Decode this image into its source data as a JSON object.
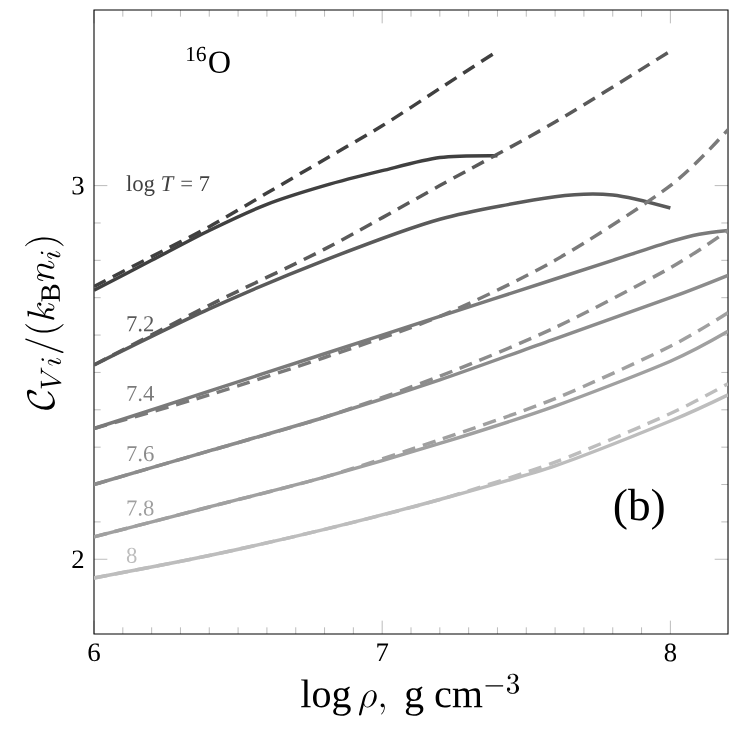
{
  "chart_data": {
    "type": "line",
    "xlabel": "\\log\\rho,\\ \\mathrm{g\\ cm}^{-3}",
    "ylabel": "\\mathcal{C}_{Vi}/(k_\\mathrm{B}n_i)",
    "xlim": [
      6,
      8.2
    ],
    "ylim": [
      1.8,
      3.47
    ],
    "xticks": [
      6,
      7,
      8
    ],
    "yticks": [
      2,
      3
    ],
    "marker": "none",
    "annotations": [
      "$^{16}$O",
      "(b)"
    ],
    "series": [
      {
        "name": "log *T* = 7",
        "color": "#404040",
        "line_style": "solid",
        "x": [
          6,
          6.2,
          6.4,
          6.6,
          6.8,
          7.0,
          7.2,
          7.4
        ],
        "values": [
          2.72,
          2.8,
          2.88,
          2.95,
          3.0,
          3.04,
          3.075,
          3.08
        ]
      },
      {
        "color": "#404040",
        "line_style": "dashed",
        "x": [
          6,
          6.2,
          6.4,
          6.6,
          6.8,
          7.0,
          7.2,
          7.4
        ],
        "values": [
          2.73,
          2.81,
          2.89,
          2.98,
          3.07,
          3.16,
          3.26,
          3.36
        ]
      },
      {
        "name": "7.2",
        "color": "#5a5a5a",
        "line_style": "solid",
        "x": [
          6,
          6.4,
          6.8,
          7.2,
          7.6,
          7.8,
          8.0
        ],
        "values": [
          2.52,
          2.67,
          2.8,
          2.91,
          2.97,
          2.975,
          2.94
        ]
      },
      {
        "color": "#5a5a5a",
        "line_style": "dashed",
        "x": [
          6,
          6.4,
          6.8,
          7.2,
          7.6,
          8.0
        ],
        "values": [
          2.52,
          2.68,
          2.83,
          3.0,
          3.17,
          3.36
        ]
      },
      {
        "name": "7.4",
        "color": "#7a7a7a",
        "line_style": "solid",
        "x": [
          6,
          6.4,
          6.8,
          7.2,
          7.6,
          7.8,
          8.0,
          8.1,
          8.2
        ],
        "values": [
          2.35,
          2.45,
          2.55,
          2.65,
          2.75,
          2.8,
          2.85,
          2.87,
          2.88
        ]
      },
      {
        "color": "#7a7a7a",
        "line_style": "dashed",
        "x": [
          6,
          6.4,
          6.8,
          7.2,
          7.6,
          8.0,
          8.2
        ],
        "values": [
          2.35,
          2.44,
          2.54,
          2.65,
          2.8,
          3.0,
          3.15
        ]
      },
      {
        "name": "7.6",
        "color": "#8c8c8c",
        "line_style": "solid",
        "x": [
          6,
          6.4,
          6.8,
          7.2,
          7.6,
          8.0,
          8.2
        ],
        "values": [
          2.2,
          2.29,
          2.38,
          2.48,
          2.59,
          2.7,
          2.76
        ]
      },
      {
        "color": "#8c8c8c",
        "line_style": "dashed",
        "x": [
          6,
          6.4,
          6.8,
          7.2,
          7.6,
          8.0,
          8.2
        ],
        "values": [
          2.2,
          2.29,
          2.38,
          2.49,
          2.62,
          2.78,
          2.88
        ]
      },
      {
        "name": "7.8",
        "color": "#a0a0a0",
        "line_style": "solid",
        "x": [
          6,
          6.4,
          6.8,
          7.2,
          7.6,
          8.0,
          8.2
        ],
        "values": [
          2.06,
          2.14,
          2.22,
          2.31,
          2.41,
          2.53,
          2.61
        ]
      },
      {
        "color": "#a0a0a0",
        "line_style": "dashed",
        "x": [
          6,
          6.4,
          6.8,
          7.2,
          7.6,
          8.0,
          8.2
        ],
        "values": [
          2.06,
          2.14,
          2.22,
          2.32,
          2.43,
          2.57,
          2.66
        ]
      },
      {
        "name": "8",
        "color": "#bdbdbd",
        "line_style": "solid",
        "x": [
          6,
          6.4,
          6.8,
          7.2,
          7.6,
          8.0,
          8.2
        ],
        "values": [
          1.95,
          2.01,
          2.08,
          2.16,
          2.25,
          2.37,
          2.44
        ]
      },
      {
        "color": "#bdbdbd",
        "line_style": "dashed",
        "x": [
          6,
          6.4,
          6.8,
          7.2,
          7.6,
          8.0,
          8.2
        ],
        "values": [
          1.95,
          2.01,
          2.08,
          2.16,
          2.26,
          2.39,
          2.47
        ]
      }
    ]
  }
}
